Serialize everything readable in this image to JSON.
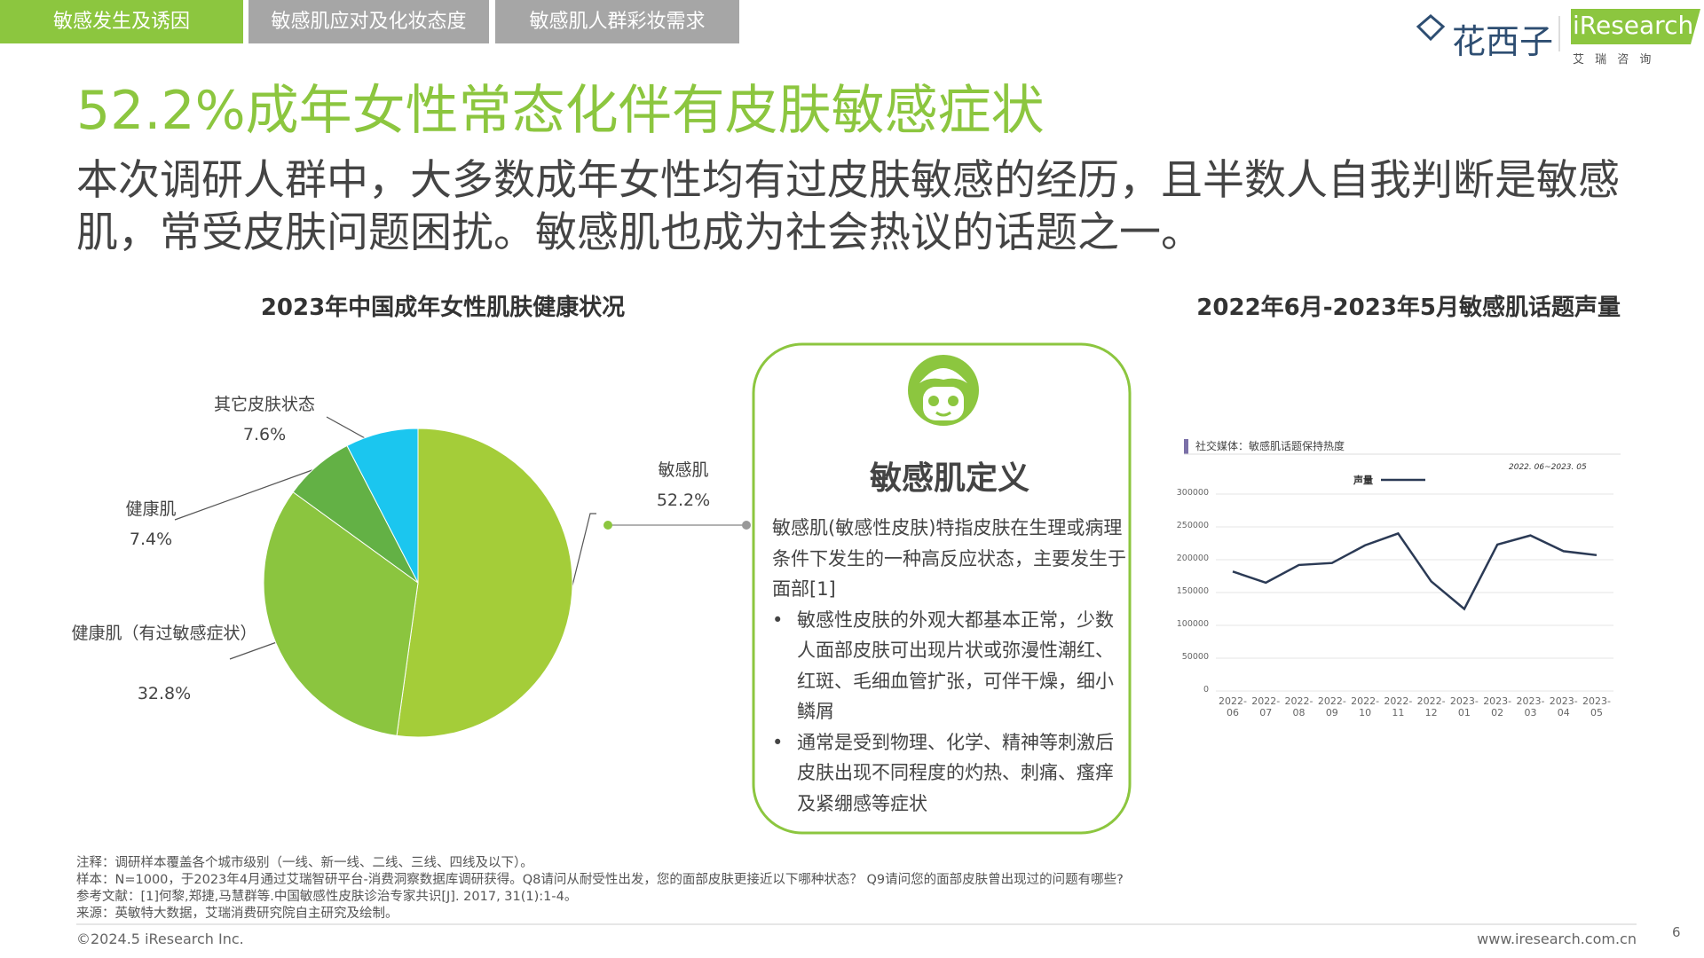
{
  "tabs": [
    "敏感发生及诱因",
    "敏感肌应对及化妆态度",
    "敏感肌人群彩妆需求"
  ],
  "logo": {
    "brand": "花西子",
    "research": "iResearch",
    "research_cn": "艾 瑞 咨 询"
  },
  "title": "52.2%成年女性常态化伴有皮肤敏感症状",
  "subtitle": "本次调研人群中，大多数成年女性均有过皮肤敏感的经历，且半数人自我判断是敏感肌，常受皮肤问题困扰。敏感肌也成为社会热议的话题之一。",
  "chart_data": [
    {
      "type": "pie",
      "title": "2023年中国成年女性肌肤健康状况",
      "categories": [
        "敏感肌",
        "健康肌（有过敏感症状）",
        "健康肌",
        "其它皮肤状态"
      ],
      "values": [
        52.2,
        32.8,
        7.4,
        7.6
      ],
      "value_labels": [
        "52.2%",
        "32.8%",
        "7.4%",
        "7.6%"
      ],
      "colors": [
        "#a4cd39",
        "#8bc53f",
        "#63b145",
        "#1bc6ef"
      ]
    },
    {
      "type": "line",
      "title": "2022年6月-2023年5月敏感肌话题声量",
      "subtitle": "社交媒体：敏感肌话题保持热度",
      "annotation": "2022. 06~2023. 05",
      "categories": [
        "2022-06",
        "2022-07",
        "2022-08",
        "2022-09",
        "2022-10",
        "2022-11",
        "2022-12",
        "2023-01",
        "2023-02",
        "2023-03",
        "2023-04",
        "2023-05"
      ],
      "series": [
        {
          "name": "声量",
          "color": "#2b3a55",
          "values": [
            182000,
            165000,
            192000,
            195000,
            222000,
            240000,
            167000,
            125000,
            223000,
            237000,
            213000,
            207000
          ]
        }
      ],
      "ylim": [
        0,
        300000
      ],
      "yticks": [
        0,
        50000,
        100000,
        150000,
        200000,
        250000,
        300000
      ],
      "grid": true
    }
  ],
  "definition": {
    "title": "敏感肌定义",
    "intro": "敏感肌(敏感性皮肤)特指皮肤在生理或病理条件下发生的一种高反应状态，主要发生于面部[1]",
    "bullets": [
      "敏感性皮肤的外观大都基本正常，少数人面部皮肤可出现片状或弥漫性潮红、红斑、毛细血管扩张，可伴干燥，细小鳞屑",
      "通常是受到物理、化学、精神等刺激后皮肤出现不同程度的灼热、刺痛、瘙痒及紧绷感等症状"
    ]
  },
  "notes": [
    "注释：调研样本覆盖各个城市级别（一线、新一线、二线、三线、四线及以下）。",
    "样本：N=1000，于2023年4月通过艾瑞智研平台-消费洞察数据库调研获得。Q8请问从耐受性出发，您的面部皮肤更接近以下哪种状态？ Q9请问您的面部皮肤曾出现过的问题有哪些?",
    "参考文献：[1]何黎,郑捷,马慧群等.中国敏感性皮肤诊治专家共识[J]. 2017, 31(1):1-4。",
    "来源：英敏特大数据，艾瑞消费研究院自主研究及绘制。"
  ],
  "footer": {
    "copyright": "©2024.5 iResearch Inc.",
    "url": "www.iresearch.com.cn",
    "page": "6"
  }
}
